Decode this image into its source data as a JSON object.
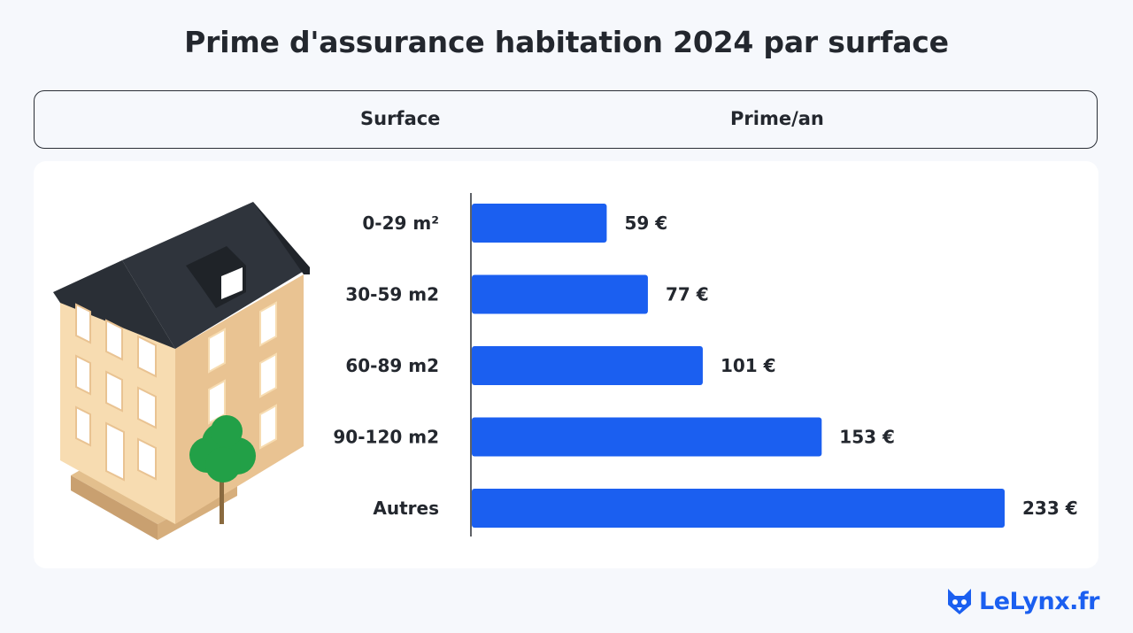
{
  "title": "Prime d'assurance habitation 2024 par surface",
  "header": {
    "col_left": "Surface",
    "col_right": "Prime/an"
  },
  "chart_data": {
    "type": "bar",
    "orientation": "horizontal",
    "categories": [
      "0-29 m²",
      "30-59 m2",
      "60-89 m2",
      "90-120 m2",
      "Autres"
    ],
    "values": [
      59,
      77,
      101,
      153,
      233
    ],
    "value_labels": [
      "59 €",
      "77 €",
      "101 €",
      "153 €",
      "233 €"
    ],
    "unit": "€",
    "xlim": [
      0,
      233
    ],
    "grid": false,
    "bar_color": "#1b5ff0"
  },
  "logo": {
    "text": "LeLynx.fr",
    "icon": "lynx-head-icon",
    "color": "#1b5ff0"
  }
}
